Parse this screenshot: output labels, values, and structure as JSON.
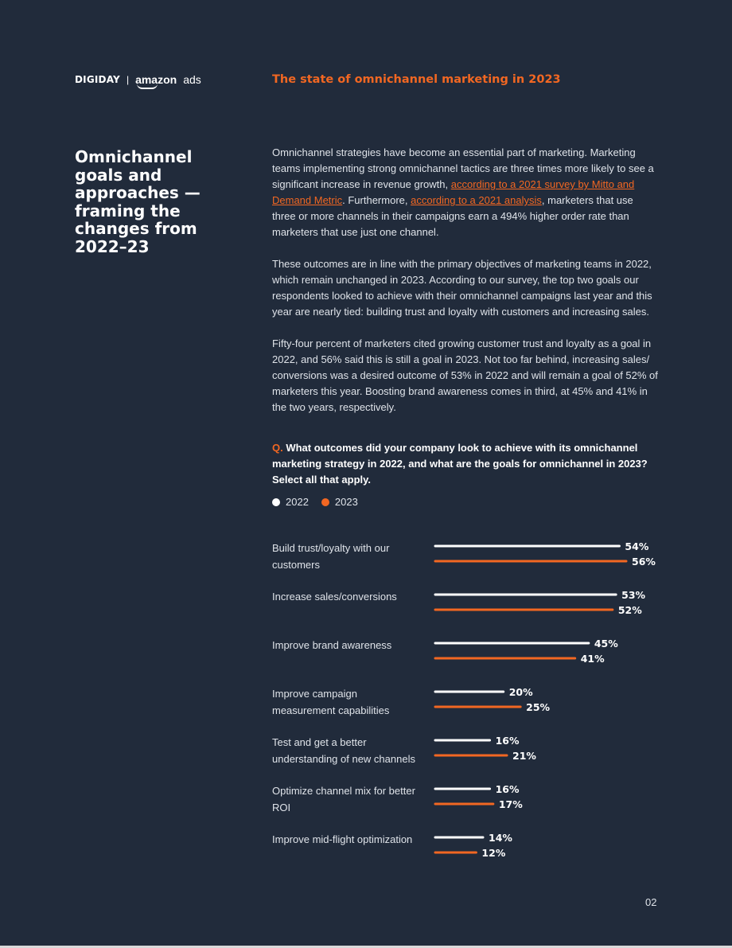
{
  "header": {
    "brand_digiday": "DIGIDAY",
    "brand_separator": "|",
    "brand_amazon": "amazon",
    "brand_ads": "ads",
    "report_title": "The state of omnichannel marketing in 2023"
  },
  "section": {
    "title": "Omnichannel goals and approaches — framing the changes from 2022–23"
  },
  "body": {
    "p1_a": "Omnichannel strategies have become an essential part of marketing. Marketing teams implementing strong omnichannel tactics are three times more likely to see a significant increase in revenue growth, ",
    "p1_link1": "according to a 2021 survey by Mitto and Demand Metric",
    "p1_b": ". Furthermore, ",
    "p1_link2": "according to a 2021 analysis",
    "p1_c": ", marketers that use three or more channels in their campaigns earn a 494% higher order rate than marketers that use just one channel.",
    "p2": "These outcomes are in line with the primary objectives of marketing teams in 2022, which remain unchanged in 2023. According to our survey, the top two goals our respondents looked to achieve with their omnichannel campaigns last year and this year are nearly tied: building trust and loyalty with customers and increasing sales.",
    "p3": "Fifty-four percent of marketers cited growing customer trust and loyalty as a goal in 2022, and 56% said this is still a goal in 2023. Not too far behind, increasing sales/ conversions was a desired outcome of 53% in 2022 and will remain a goal of 52% of marketers this year. Boosting brand awareness comes in third, at 45% and 41% in the two years, respectively."
  },
  "question": {
    "prefix": "Q.",
    "text": " What outcomes did your company look to achieve with its omnichannel marketing strategy in 2022, and what are the goals for omnichannel in 2023? Select all that apply."
  },
  "chart_data": {
    "type": "bar",
    "orientation": "horizontal",
    "categories": [
      "Build trust/loyalty with our customers",
      "Increase sales/conversions",
      "Improve brand awareness",
      "Improve campaign measurement capabilities",
      "Test and get a better understanding of new channels",
      "Optimize channel mix for better ROI",
      "Improve mid-flight optimization"
    ],
    "series": [
      {
        "name": "2022",
        "color": "#ffffff",
        "values": [
          54,
          53,
          45,
          20,
          16,
          16,
          14
        ]
      },
      {
        "name": "2023",
        "color": "#f26722",
        "values": [
          56,
          52,
          41,
          25,
          21,
          17,
          12
        ]
      }
    ],
    "value_suffix": "%",
    "legend_position": "top-left",
    "grid": false
  },
  "footer": {
    "page_number": "02"
  }
}
